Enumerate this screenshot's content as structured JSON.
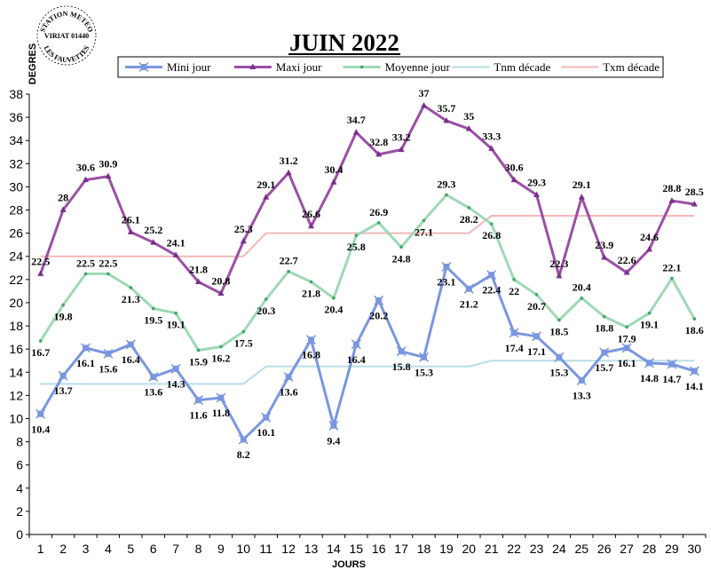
{
  "chart_data": {
    "type": "line",
    "title": "JUIN 2022",
    "xlabel": "JOURS",
    "ylabel": "DEGRES",
    "ylim": [
      0,
      38
    ],
    "ytick_step": 2,
    "grid": false,
    "legend_position": "top",
    "stamp": {
      "lines": [
        "STATION METEO",
        "VIRIAT 01440",
        "LES FAUVETTES"
      ]
    },
    "x": [
      1,
      2,
      3,
      4,
      5,
      6,
      7,
      8,
      9,
      10,
      11,
      12,
      13,
      14,
      15,
      16,
      17,
      18,
      19,
      20,
      21,
      22,
      23,
      24,
      25,
      26,
      27,
      28,
      29,
      30
    ],
    "series": [
      {
        "name": "Mini jour",
        "color": "#7A96E0",
        "marker": "star",
        "labels": true,
        "values": [
          10.4,
          13.7,
          16.1,
          15.6,
          16.4,
          13.6,
          14.3,
          11.6,
          11.8,
          8.2,
          10.1,
          13.6,
          16.8,
          9.4,
          16.4,
          20.2,
          15.8,
          15.3,
          23.1,
          21.2,
          22.4,
          17.4,
          17.1,
          15.3,
          13.3,
          15.7,
          16.1,
          14.8,
          14.7,
          14.1
        ]
      },
      {
        "name": "Maxi jour",
        "color": "#9B4FA6",
        "marker": "triangle",
        "labels": true,
        "values": [
          22.5,
          28,
          30.6,
          30.9,
          26.1,
          25.2,
          24.1,
          21.8,
          20.8,
          25.3,
          29.1,
          31.2,
          26.6,
          30.4,
          34.7,
          32.8,
          33.2,
          37,
          35.7,
          35,
          33.3,
          30.6,
          29.3,
          22.3,
          29.1,
          23.9,
          22.6,
          24.6,
          28.8,
          28.5
        ]
      },
      {
        "name": "Moyenne jour",
        "color": "#9ED9B4",
        "marker": "dot",
        "labels": true,
        "values": [
          16.7,
          19.8,
          22.5,
          22.5,
          21.3,
          19.5,
          19.1,
          15.9,
          16.2,
          17.5,
          20.3,
          22.7,
          21.8,
          20.4,
          25.8,
          26.9,
          24.8,
          27.1,
          29.3,
          28.2,
          26.8,
          22,
          20.7,
          18.5,
          20.4,
          18.8,
          17.9,
          19.1,
          22.1,
          18.6
        ]
      },
      {
        "name": "Tnm décade",
        "color": "#B8DDE6",
        "marker": "none",
        "labels": false,
        "values": [
          13,
          13,
          13,
          13,
          13,
          13,
          13,
          13,
          13,
          13,
          14.5,
          14.5,
          14.5,
          14.5,
          14.5,
          14.5,
          14.5,
          14.5,
          14.5,
          14.5,
          15,
          15,
          15,
          15,
          15,
          15,
          15,
          15,
          15,
          15
        ]
      },
      {
        "name": "Txm décade",
        "color": "#F2B8B8",
        "marker": "none",
        "labels": false,
        "values": [
          24,
          24,
          24,
          24,
          24,
          24,
          24,
          24,
          24,
          24,
          26,
          26,
          26,
          26,
          26,
          26,
          26,
          26,
          26,
          26,
          27.5,
          27.5,
          27.5,
          27.5,
          27.5,
          27.5,
          27.5,
          27.5,
          27.5,
          27.5
        ]
      }
    ]
  }
}
